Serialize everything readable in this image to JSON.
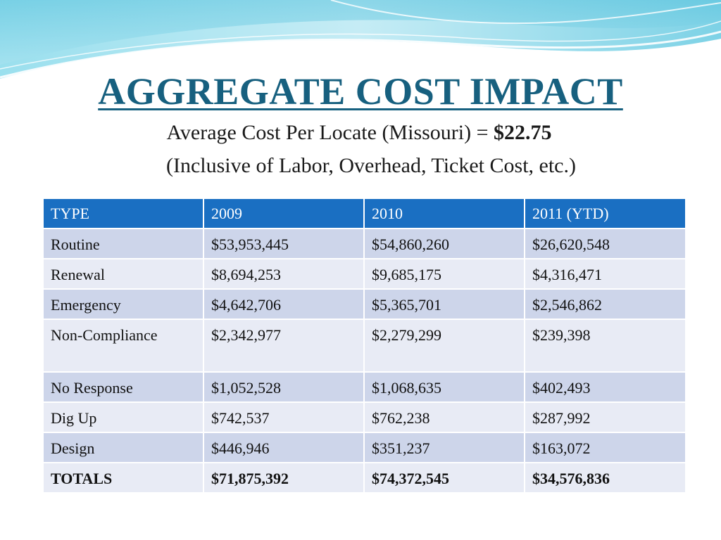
{
  "slide": {
    "title": "AGGREGATE COST IMPACT",
    "subtitle_line1_text": "Average Cost Per Locate (Missouri) = ",
    "subtitle_line1_value": "$22.75",
    "subtitle_line2": "(Inclusive of  Labor, Overhead, Ticket Cost, etc.)"
  },
  "table": {
    "headers": [
      "TYPE",
      "2009",
      "2010",
      "2011 (YTD)"
    ],
    "rows": [
      [
        "Routine",
        "$53,953,445",
        "$54,860,260",
        "$26,620,548"
      ],
      [
        "Renewal",
        "$8,694,253",
        "$9,685,175",
        "$4,316,471"
      ],
      [
        "Emergency",
        "$4,642,706",
        "$5,365,701",
        "$2,546,862"
      ],
      [
        "Non-Compliance",
        "$2,342,977",
        "$2,279,299",
        "$239,398"
      ],
      [
        "No Response",
        "$1,052,528",
        "$1,068,635",
        "$402,493"
      ],
      [
        "Dig Up",
        "$742,537",
        "$762,238",
        "$287,992"
      ],
      [
        "Design",
        "$446,946",
        "$351,237",
        "$163,072"
      ],
      [
        "TOTALS",
        "$71,875,392",
        "$74,372,545",
        "$34,576,836"
      ]
    ]
  },
  "colors": {
    "title": "#17607f",
    "header_bg": "#1a6fc2",
    "row_odd": "#cdd5ea",
    "row_even": "#e8ebf5",
    "wave": "#7fd3e6"
  }
}
